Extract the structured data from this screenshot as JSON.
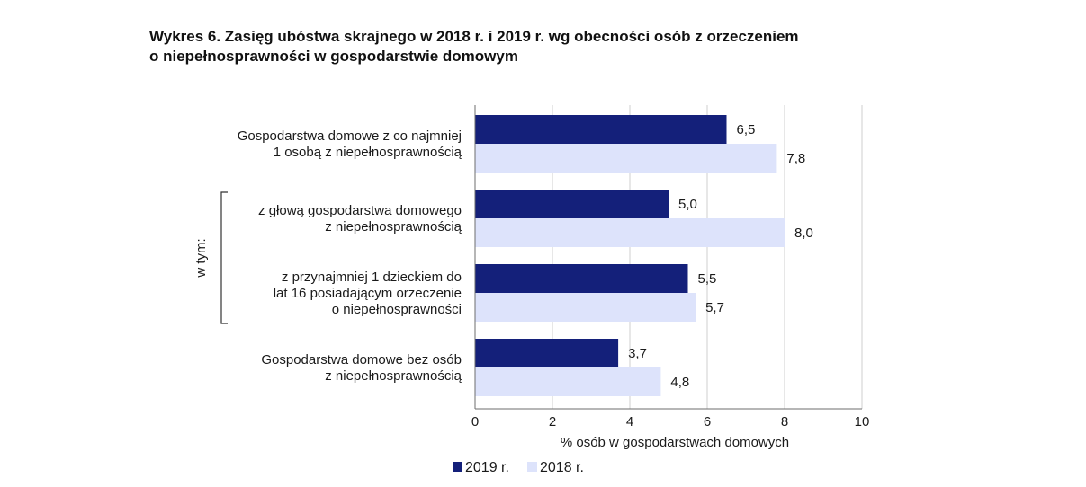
{
  "title": {
    "line1": "Wykres 6. Zasięg ubóstwa skrajnego w 2018 r. i 2019 r. wg obecności osób z orzeczeniem",
    "line2": "o niepełnosprawności w gospodarstwie domowym"
  },
  "group_label": "w tym:",
  "colors": {
    "series_2019": "#14207a",
    "series_2018": "#dde3fb",
    "grid": "#cfcfcf",
    "axis": "#6d6d6d"
  },
  "chart_data": {
    "type": "bar",
    "orientation": "horizontal",
    "title": "Wykres 6. Zasięg ubóstwa skrajnego w 2018 r. i 2019 r. wg obecności osób z orzeczeniem o niepełnosprawności w gospodarstwie domowym",
    "xlabel": "% osób w gospodarstwach domowych",
    "ylabel": "",
    "xlim": [
      0,
      10
    ],
    "xticks": [
      "0",
      "2",
      "4",
      "6",
      "8",
      "10"
    ],
    "grid": true,
    "legend_position": "bottom-left",
    "categories": [
      [
        "Gospodarstwa domowe z co najmniej",
        "1 osobą z niepełnosprawnością"
      ],
      [
        "z głową gospodarstwa domowego",
        "z niepełnosprawnością"
      ],
      [
        "z przynajmniej 1 dzieckiem do",
        "lat 16 posiadającym orzeczenie",
        "o niepełnosprawności"
      ],
      [
        "Gospodarstwa domowe bez osób",
        "z niepełnosprawnością"
      ]
    ],
    "series": [
      {
        "name": "2019 r.",
        "values": [
          6.5,
          5.0,
          5.5,
          3.7
        ],
        "labels": [
          "6,5",
          "5,0",
          "5,5",
          "3,7"
        ]
      },
      {
        "name": "2018 r.",
        "values": [
          7.8,
          8.0,
          5.7,
          4.8
        ],
        "labels": [
          "7,8",
          "8,0",
          "5,7",
          "4,8"
        ]
      }
    ]
  }
}
